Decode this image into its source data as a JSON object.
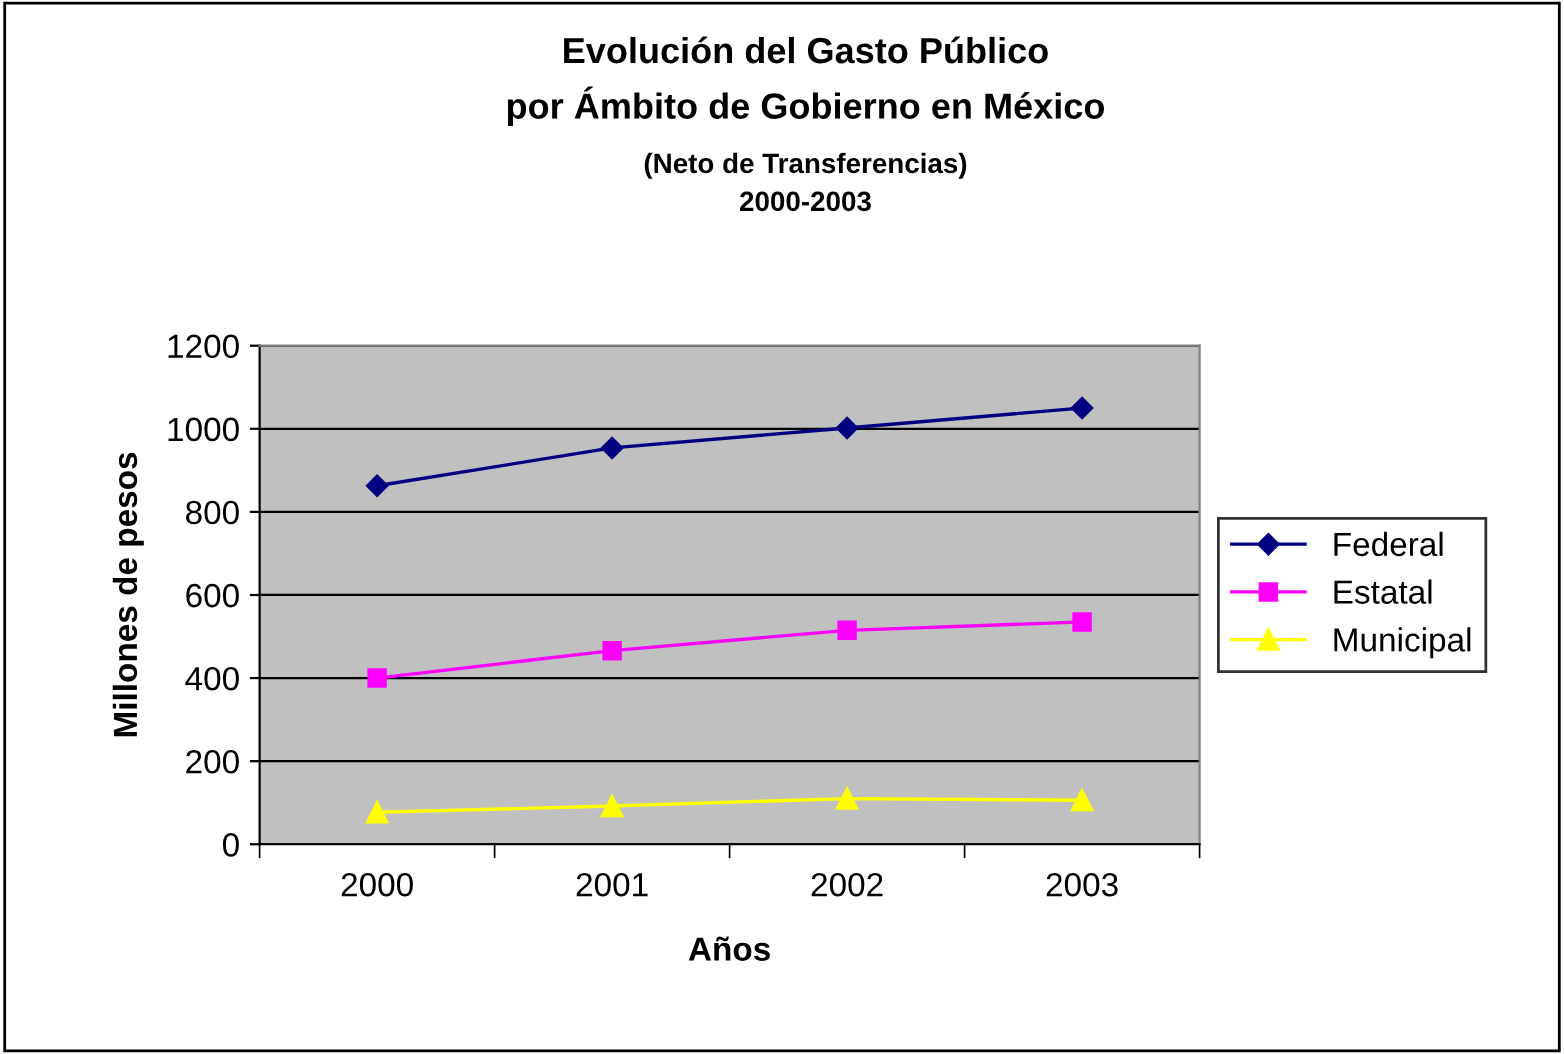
{
  "chart_data": {
    "type": "line",
    "title": "Evolución del Gasto Público\npor Ámbito de Gobierno en México",
    "subtitle": "(Neto de Transferencias)\n2000-2003",
    "xlabel": "Años",
    "ylabel": "Millones de pesos",
    "categories": [
      "2000",
      "2001",
      "2002",
      "2003"
    ],
    "series": [
      {
        "name": "Federal",
        "color": "#000080",
        "marker": "diamond",
        "values": [
          863,
          954,
          1002,
          1050
        ]
      },
      {
        "name": "Estatal",
        "color": "#ff00ff",
        "marker": "square",
        "values": [
          400,
          466,
          515,
          535
        ]
      },
      {
        "name": "Municipal",
        "color": "#ffff00",
        "marker": "triangle",
        "values": [
          77,
          92,
          110,
          106
        ]
      }
    ],
    "ylim": [
      0,
      1200
    ],
    "yticks": [
      0,
      200,
      400,
      600,
      800,
      1000,
      1200
    ],
    "grid": "y",
    "legend": "right",
    "line_style": "solid"
  }
}
